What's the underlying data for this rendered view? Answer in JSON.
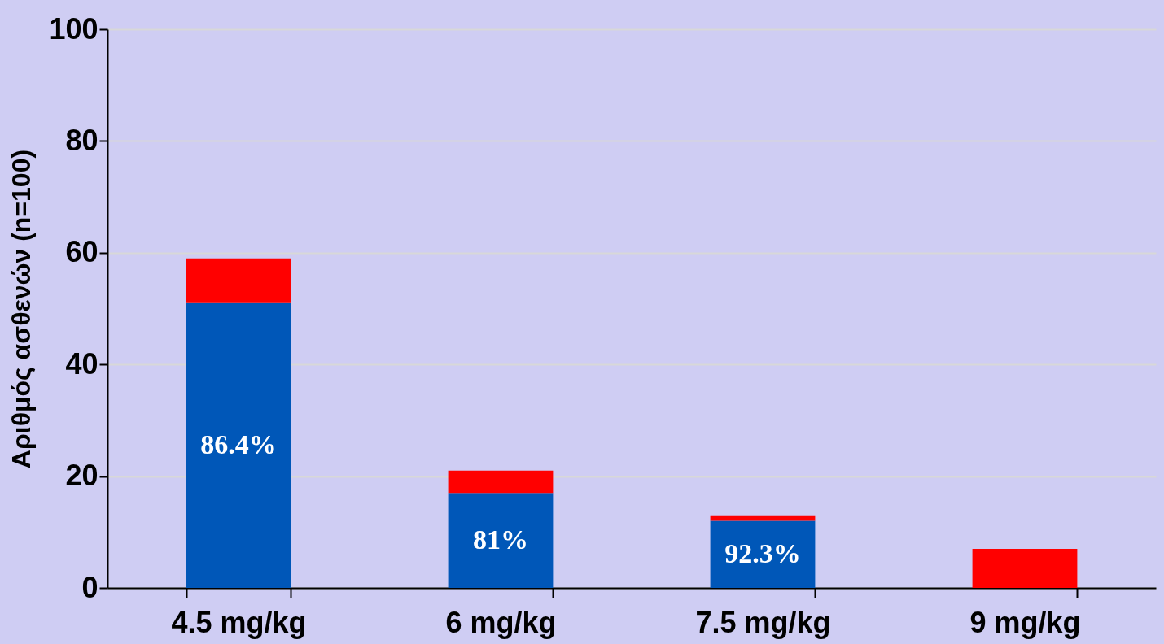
{
  "chart_data": {
    "type": "bar",
    "ylabel": "Αριθμός ασθενών (n=100)",
    "categories": [
      "4.5 mg/kg",
      "6 mg/kg",
      "7.5 mg/kg",
      "9 mg/kg"
    ],
    "stacked": true,
    "series": [
      {
        "color": "#0057b8",
        "values": [
          51,
          17,
          12,
          null
        ]
      },
      {
        "color": "#ff0000",
        "values": [
          8,
          4,
          1,
          7
        ]
      }
    ],
    "annotations": [
      "86.4%",
      "81%",
      "92.3%"
    ],
    "ylim": [
      0,
      100
    ],
    "yticks": [
      0,
      20,
      40,
      60,
      80,
      100
    ],
    "grid": "y"
  }
}
